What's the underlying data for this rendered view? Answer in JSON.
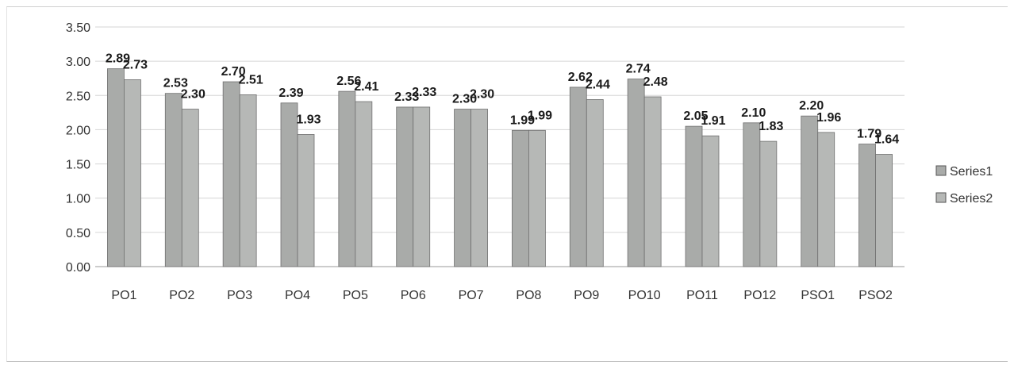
{
  "chart_data": {
    "type": "bar",
    "categories": [
      "PO1",
      "PO2",
      "PO3",
      "PO4",
      "PO5",
      "PO6",
      "PO7",
      "PO8",
      "PO9",
      "PO10",
      "PO11",
      "PO12",
      "PSO1",
      "PSO2"
    ],
    "series": [
      {
        "name": "Series1",
        "values": [
          2.89,
          2.53,
          2.7,
          2.39,
          2.56,
          2.33,
          2.3,
          1.99,
          2.62,
          2.74,
          2.05,
          2.1,
          2.2,
          1.79
        ],
        "color": "#a9aba9"
      },
      {
        "name": "Series2",
        "values": [
          2.73,
          2.3,
          2.51,
          1.93,
          2.41,
          2.33,
          2.3,
          1.99,
          2.44,
          2.48,
          1.91,
          1.83,
          1.96,
          1.64
        ],
        "color": "#b6b8b6"
      }
    ],
    "title": "",
    "xlabel": "",
    "ylabel": "",
    "ylim": [
      0,
      3.5
    ],
    "yticks": [
      "0.00",
      "0.50",
      "1.00",
      "1.50",
      "2.00",
      "2.50",
      "3.00",
      "3.50"
    ],
    "grid": true,
    "legend": "right"
  }
}
